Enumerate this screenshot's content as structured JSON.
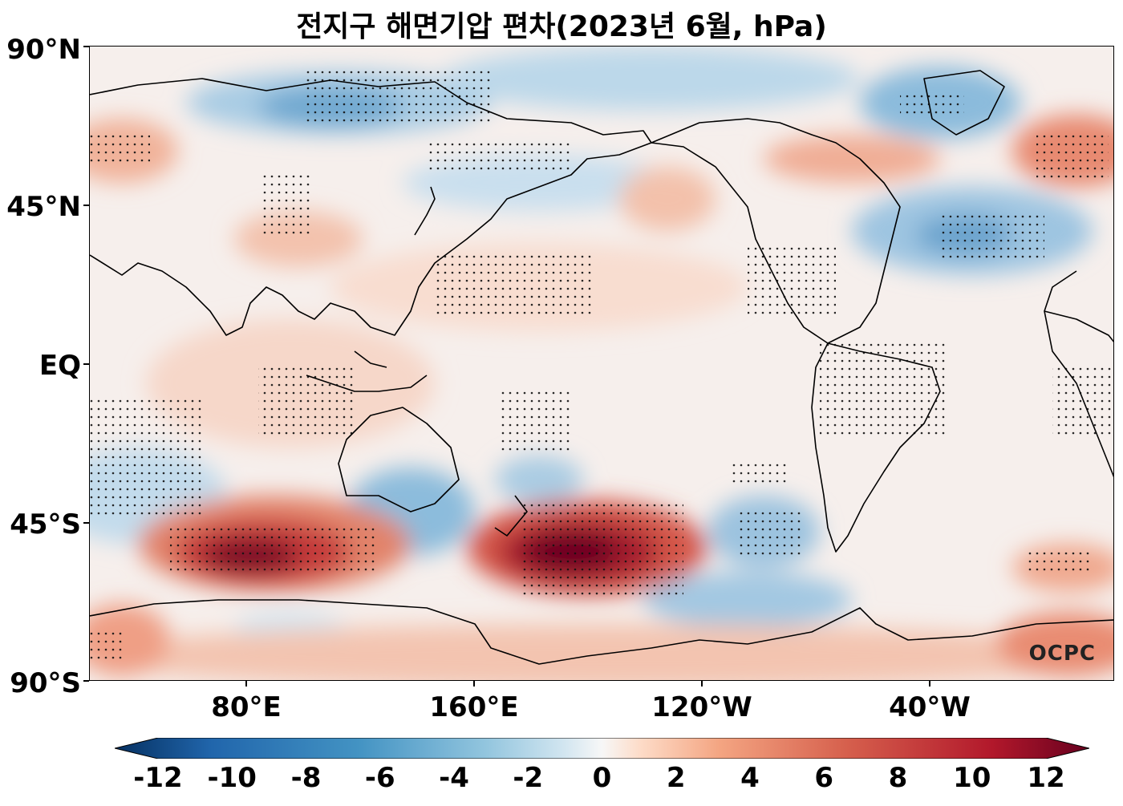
{
  "title": "전지구 해면기압 편차(2023년 6월, hPa)",
  "lat_labels": [
    "90°N",
    "45°N",
    "EQ",
    "45°S",
    "90°S"
  ],
  "lon_labels": [
    "80°E",
    "160°E",
    "120°W",
    "40°W"
  ],
  "colorbar": {
    "ticks": [
      "-12",
      "-10",
      "-8",
      "-6",
      "-4",
      "-2",
      "0",
      "2",
      "4",
      "6",
      "8",
      "10",
      "12"
    ],
    "min": -12,
    "max": 12,
    "colormap": "RdBu_r"
  },
  "watermark": "OCPC",
  "colors": {
    "strong_negative": "#08306b",
    "negative": "#4393c3",
    "neutral": "#f7f7f7",
    "positive": "#d6604d",
    "strong_positive": "#67001f"
  }
}
